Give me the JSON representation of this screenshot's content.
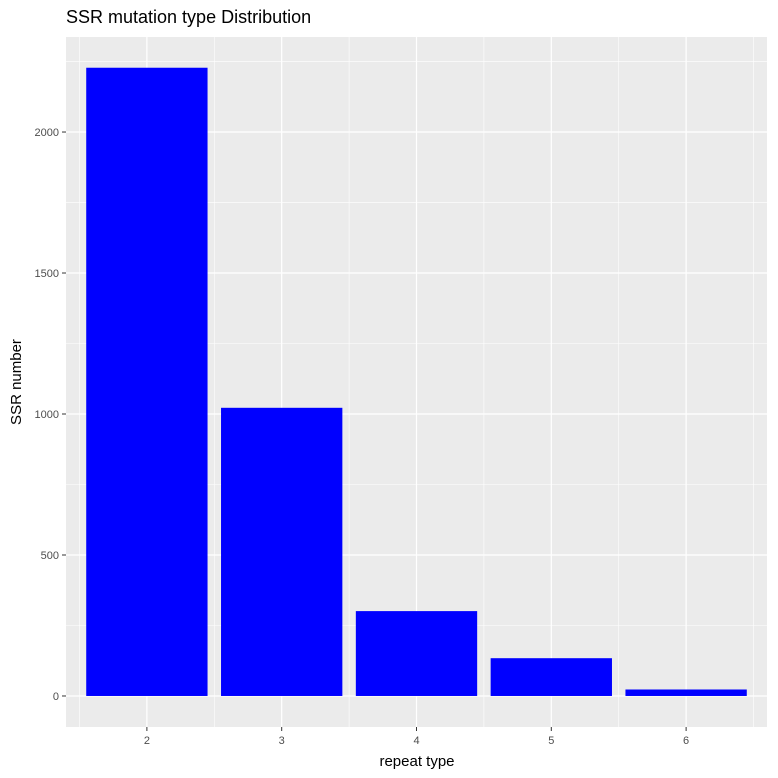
{
  "chart_data": {
    "type": "bar",
    "title": "SSR mutation type Distribution",
    "xlabel": "repeat type",
    "ylabel": "SSR number",
    "categories": [
      "2",
      "3",
      "4",
      "5",
      "6"
    ],
    "values": [
      2228,
      1022,
      301,
      134,
      23
    ],
    "ylim": [
      -110,
      2337
    ],
    "yticks": [
      0,
      500,
      1000,
      1500,
      2000
    ],
    "ytick_labels": [
      "0",
      "500",
      "1000",
      "1500",
      "2000"
    ],
    "bar_color": "#0000ff",
    "panel_color": "#ebebeb",
    "grid_color": "#ffffff",
    "grid": true,
    "legend": "none"
  }
}
